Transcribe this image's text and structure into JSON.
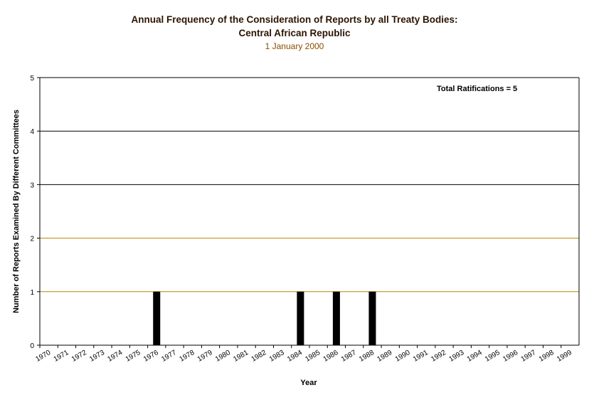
{
  "chart_data": {
    "type": "bar",
    "title": "Annual Frequency of the Consideration of Reports by all Treaty Bodies:",
    "subtitle": "Central African Republic",
    "date": "1 January 2000",
    "xlabel": "Year",
    "ylabel": "Number of Reports Examined By Different Committees",
    "ylim": [
      0,
      5
    ],
    "yticks": [
      "0",
      "1",
      "2",
      "3",
      "4",
      "5"
    ],
    "categories": [
      "1970",
      "1971",
      "1972",
      "1973",
      "1974",
      "1975",
      "1976",
      "1977",
      "1978",
      "1979",
      "1980",
      "1981",
      "1982",
      "1983",
      "1984",
      "1985",
      "1986",
      "1987",
      "1988",
      "1989",
      "1990",
      "1991",
      "1992",
      "1993",
      "1994",
      "1995",
      "1996",
      "1997",
      "1998",
      "1999"
    ],
    "values": [
      0,
      0,
      0,
      0,
      0,
      0,
      1,
      0,
      0,
      0,
      0,
      0,
      0,
      0,
      1,
      0,
      1,
      0,
      1,
      0,
      0,
      0,
      0,
      0,
      0,
      0,
      0,
      0,
      0,
      0
    ],
    "annotation": "Total Ratifications = 5",
    "grid": true,
    "colors": {
      "bar": "#000000",
      "gridline": "#000000",
      "gridline_low": "#b8860b",
      "title": "#2b1500",
      "date": "#8b4c00"
    }
  }
}
